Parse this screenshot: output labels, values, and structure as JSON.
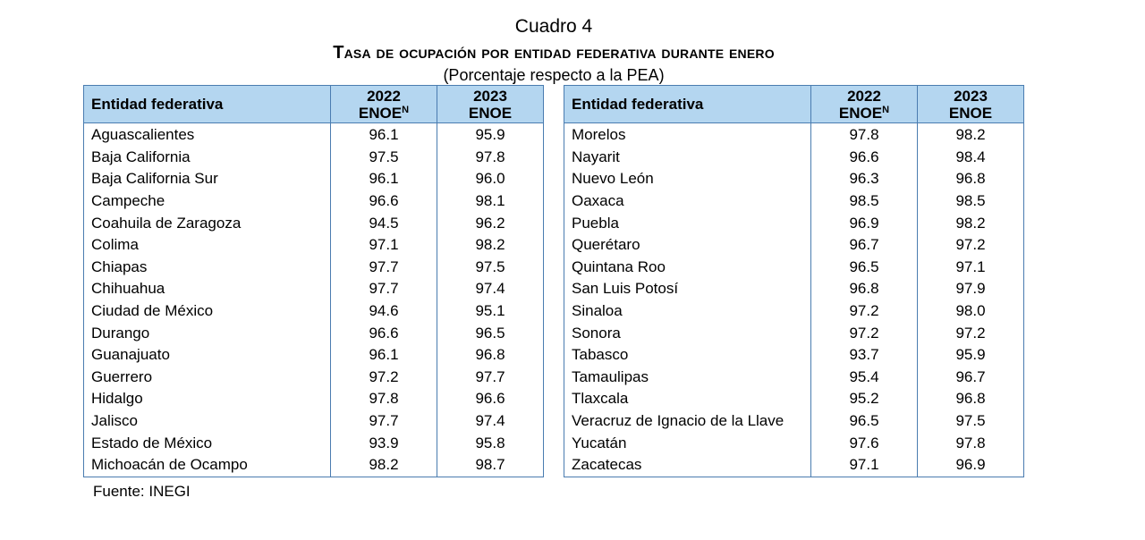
{
  "header": {
    "cuadro": "Cuadro 4",
    "title": "Tasa de ocupación por entidad federativa durante enero",
    "subtitle": "(Porcentaje respecto a la PEA)"
  },
  "columns": {
    "entity": "Entidad federativa",
    "year_2022": "2022",
    "survey_2022": "ENOE",
    "survey_2022_sup": "N",
    "year_2023": "2023",
    "survey_2023": "ENOE"
  },
  "left_rows": [
    {
      "entity": "Aguascalientes",
      "v2022": "96.1",
      "v2023": "95.9"
    },
    {
      "entity": "Baja California",
      "v2022": "97.5",
      "v2023": "97.8"
    },
    {
      "entity": "Baja California Sur",
      "v2022": "96.1",
      "v2023": "96.0"
    },
    {
      "entity": "Campeche",
      "v2022": "96.6",
      "v2023": "98.1"
    },
    {
      "entity": "Coahuila de Zaragoza",
      "v2022": "94.5",
      "v2023": "96.2"
    },
    {
      "entity": "Colima",
      "v2022": "97.1",
      "v2023": "98.2"
    },
    {
      "entity": "Chiapas",
      "v2022": "97.7",
      "v2023": "97.5"
    },
    {
      "entity": "Chihuahua",
      "v2022": "97.7",
      "v2023": "97.4"
    },
    {
      "entity": "Ciudad de México",
      "v2022": "94.6",
      "v2023": "95.1"
    },
    {
      "entity": "Durango",
      "v2022": "96.6",
      "v2023": "96.5"
    },
    {
      "entity": "Guanajuato",
      "v2022": "96.1",
      "v2023": "96.8"
    },
    {
      "entity": "Guerrero",
      "v2022": "97.2",
      "v2023": "97.7"
    },
    {
      "entity": "Hidalgo",
      "v2022": "97.8",
      "v2023": "96.6"
    },
    {
      "entity": "Jalisco",
      "v2022": "97.7",
      "v2023": "97.4"
    },
    {
      "entity": "Estado de México",
      "v2022": "93.9",
      "v2023": "95.8"
    },
    {
      "entity": "Michoacán de Ocampo",
      "v2022": "98.2",
      "v2023": "98.7"
    }
  ],
  "right_rows": [
    {
      "entity": "Morelos",
      "v2022": "97.8",
      "v2023": "98.2"
    },
    {
      "entity": "Nayarit",
      "v2022": "96.6",
      "v2023": "98.4"
    },
    {
      "entity": "Nuevo León",
      "v2022": "96.3",
      "v2023": "96.8"
    },
    {
      "entity": "Oaxaca",
      "v2022": "98.5",
      "v2023": "98.5"
    },
    {
      "entity": "Puebla",
      "v2022": "96.9",
      "v2023": "98.2"
    },
    {
      "entity": "Querétaro",
      "v2022": "96.7",
      "v2023": "97.2"
    },
    {
      "entity": "Quintana Roo",
      "v2022": "96.5",
      "v2023": "97.1"
    },
    {
      "entity": "San Luis Potosí",
      "v2022": "96.8",
      "v2023": "97.9"
    },
    {
      "entity": "Sinaloa",
      "v2022": "97.2",
      "v2023": "98.0"
    },
    {
      "entity": "Sonora",
      "v2022": "97.2",
      "v2023": "97.2"
    },
    {
      "entity": "Tabasco",
      "v2022": "93.7",
      "v2023": "95.9"
    },
    {
      "entity": "Tamaulipas",
      "v2022": "95.4",
      "v2023": "96.7"
    },
    {
      "entity": "Tlaxcala",
      "v2022": "95.2",
      "v2023": "96.8"
    },
    {
      "entity": "Veracruz de Ignacio de la Llave",
      "v2022": "96.5",
      "v2023": "97.5"
    },
    {
      "entity": "Yucatán",
      "v2022": "97.6",
      "v2023": "97.8"
    },
    {
      "entity": "Zacatecas",
      "v2022": "97.1",
      "v2023": "96.9"
    }
  ],
  "footer": {
    "source": "Fuente: INEGI"
  },
  "colors": {
    "header_fill": "#b4d6f0",
    "border": "#4a7cb0"
  }
}
